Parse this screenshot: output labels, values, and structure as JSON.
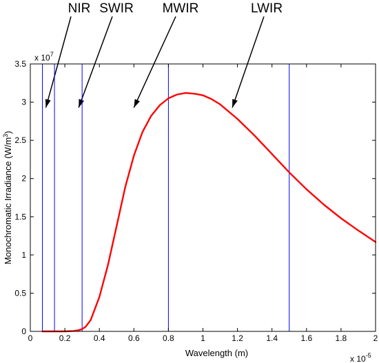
{
  "chart_data": {
    "type": "line",
    "title": "",
    "xlabel": "Wavelength (m)",
    "ylabel": "Monochromatic Irradiance (W/m",
    "ylabel_sup": "3",
    "ylabel_end": ")",
    "xlim": [
      0,
      2
    ],
    "ylim": [
      0,
      3.5
    ],
    "x_exponent_label": "x 10",
    "x_exponent_sup": "-5",
    "y_exponent_label": "x 10",
    "y_exponent_sup": "7",
    "xticks": [
      0,
      0.2,
      0.4,
      0.6,
      0.8,
      1,
      1.2,
      1.4,
      1.6,
      1.8,
      2
    ],
    "xtick_labels": [
      "0",
      "0.2",
      "0.4",
      "0.6",
      "0.8",
      "1",
      "1.2",
      "1.4",
      "1.6",
      "1.8",
      "2"
    ],
    "yticks": [
      0,
      0.5,
      1,
      1.5,
      2,
      2.5,
      3,
      3.5
    ],
    "ytick_labels": [
      "0",
      "0.5",
      "1",
      "1.5",
      "2",
      "2.5",
      "3",
      "3.5"
    ],
    "series": [
      {
        "color": "#ff0000",
        "x": [
          0.07,
          0.1,
          0.15,
          0.2,
          0.25,
          0.28,
          0.3,
          0.32,
          0.35,
          0.4,
          0.45,
          0.5,
          0.55,
          0.6,
          0.65,
          0.7,
          0.75,
          0.8,
          0.85,
          0.9,
          0.95,
          1.0,
          1.05,
          1.1,
          1.2,
          1.3,
          1.4,
          1.5,
          1.6,
          1.7,
          1.8,
          1.9,
          2.0
        ],
        "values": [
          0,
          0,
          0,
          0,
          0.005,
          0.015,
          0.03,
          0.06,
          0.15,
          0.45,
          0.87,
          1.38,
          1.89,
          2.3,
          2.61,
          2.82,
          2.96,
          3.05,
          3.1,
          3.12,
          3.11,
          3.09,
          3.04,
          2.97,
          2.78,
          2.56,
          2.32,
          2.08,
          1.86,
          1.66,
          1.48,
          1.32,
          1.17
        ]
      }
    ],
    "vertical_lines": {
      "color": "#0000ff",
      "x": [
        0.07,
        0.14,
        0.3,
        0.8,
        1.5
      ]
    },
    "annotations": [
      {
        "text": "NIR",
        "target_x": 0.07,
        "target_y": 3.0
      },
      {
        "text": "SWIR",
        "target_x": 0.28,
        "target_y": 3.0
      },
      {
        "text": "MWIR",
        "target_x": 0.6,
        "target_y": 3.0
      },
      {
        "text": "LWIR",
        "target_x": 1.17,
        "target_y": 3.0
      }
    ],
    "grid": false,
    "legend": "none"
  }
}
